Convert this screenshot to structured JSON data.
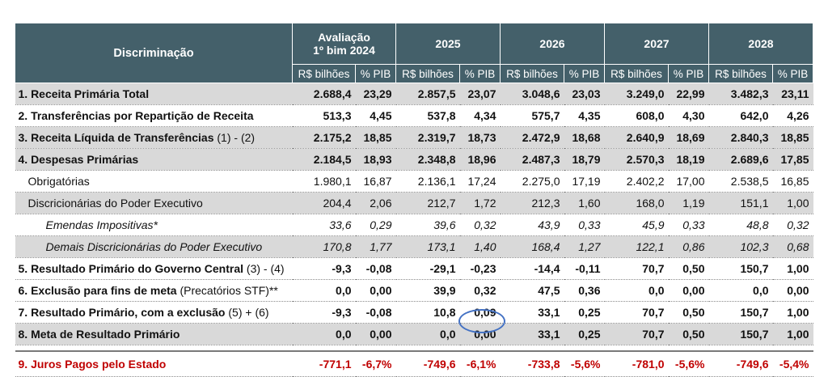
{
  "header": {
    "discriminacao": "Discriminação",
    "groups": [
      "Avaliação\n1º bim 2024",
      "2025",
      "2026",
      "2027",
      "2028"
    ],
    "group_line1": "Avaliação",
    "group_line2": "1º bim 2024",
    "sub_rs": "R$ bilhões",
    "sub_pib": "% PIB"
  },
  "rows": [
    {
      "label": "1. Receita Primária Total",
      "suffix": "",
      "values": [
        "2.688,4",
        "23,29",
        "2.857,5",
        "23,07",
        "3.048,6",
        "23,03",
        "3.249,0",
        "22,99",
        "3.482,3",
        "23,11"
      ]
    },
    {
      "label": "2. Transferências por Repartição de Receita",
      "suffix": "",
      "values": [
        "513,3",
        "4,45",
        "537,8",
        "4,34",
        "575,7",
        "4,35",
        "608,0",
        "4,30",
        "642,0",
        "4,26"
      ]
    },
    {
      "label": "3. Receita Líquida de Transferências",
      "suffix": " (1) - (2)",
      "values": [
        "2.175,2",
        "18,85",
        "2.319,7",
        "18,73",
        "2.472,9",
        "18,68",
        "2.640,9",
        "18,69",
        "2.840,3",
        "18,85"
      ]
    },
    {
      "label": "4. Despesas Primárias",
      "suffix": "",
      "values": [
        "2.184,5",
        "18,93",
        "2.348,8",
        "18,96",
        "2.487,3",
        "18,79",
        "2.570,3",
        "18,19",
        "2.689,6",
        "17,85"
      ]
    },
    {
      "label": "Obrigatórias",
      "suffix": "",
      "values": [
        "1.980,1",
        "16,87",
        "2.136,1",
        "17,24",
        "2.275,0",
        "17,19",
        "2.402,2",
        "17,00",
        "2.538,5",
        "16,85"
      ]
    },
    {
      "label": "Discricionárias do Poder Executivo",
      "suffix": "",
      "values": [
        "204,4",
        "2,06",
        "212,7",
        "1,72",
        "212,3",
        "1,60",
        "168,0",
        "1,19",
        "151,1",
        "1,00"
      ]
    },
    {
      "label": "Emendas Impositivas*",
      "suffix": "",
      "values": [
        "33,6",
        "0,29",
        "39,6",
        "0,32",
        "43,9",
        "0,33",
        "45,9",
        "0,33",
        "48,8",
        "0,32"
      ]
    },
    {
      "label": "Demais Discricionárias do Poder Executivo",
      "suffix": "",
      "values": [
        "170,8",
        "1,77",
        "173,1",
        "1,40",
        "168,4",
        "1,27",
        "122,1",
        "0,86",
        "102,3",
        "0,68"
      ]
    },
    {
      "label": "5. Resultado Primário do Governo Central",
      "suffix": " (3) - (4)",
      "values": [
        "-9,3",
        "-0,08",
        "-29,1",
        "-0,23",
        "-14,4",
        "-0,11",
        "70,7",
        "0,50",
        "150,7",
        "1,00"
      ]
    },
    {
      "label": "6. Exclusão para fins de meta",
      "suffix": " (Precatórios STF)**",
      "values": [
        "0,0",
        "0,00",
        "39,9",
        "0,32",
        "47,5",
        "0,36",
        "0,0",
        "0,00",
        "0,0",
        "0,00"
      ]
    },
    {
      "label": "7. Resultado Primário, com a exclusão",
      "suffix": " (5) + (6)",
      "values": [
        "-9,3",
        "-0,08",
        "10,8",
        "0,09",
        "33,1",
        "0,25",
        "70,7",
        "0,50",
        "150,7",
        "1,00"
      ]
    },
    {
      "label": "8. Meta de Resultado Primário",
      "suffix": "",
      "values": [
        "0,0",
        "0,00",
        "0,0",
        "0,00",
        "33,1",
        "0,25",
        "70,7",
        "0,50",
        "150,7",
        "1,00"
      ]
    }
  ],
  "juros": {
    "label": "9. Juros Pagos pelo Estado",
    "values": [
      "-771,1",
      "-6,7%",
      "-749,6",
      "-6,1%",
      "-733,8",
      "-5,6%",
      "-781,0",
      "-5,6%",
      "-749,6",
      "-5,4%"
    ]
  }
}
